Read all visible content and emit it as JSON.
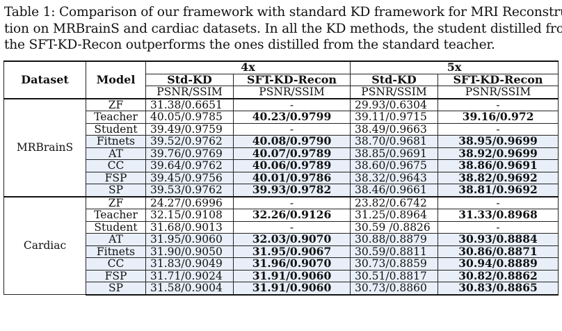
{
  "caption": {
    "line1": "Table 1: Comparison of our framework with standard KD framework for MRI Reconstruc-",
    "line2": "tion on MRBrainS and cardiac datasets. In all the KD methods, the student distilled from",
    "line3": "the SFT-KD-Recon outperforms the ones distilled from the standard teacher."
  },
  "header": {
    "dataset": "Dataset",
    "model": "Model",
    "group_4x": "4x",
    "group_5x": "5x",
    "std_kd": "Std-KD",
    "sft_kd": "SFT-KD-Recon",
    "metric": "PSNR/SSIM"
  },
  "mrbrains": {
    "name": "MRBrainS",
    "rows": [
      {
        "model": "ZF",
        "a": "31.38/0.6651",
        "b": "-",
        "c": "29.93/0.6304",
        "d": "-"
      },
      {
        "model": "Teacher",
        "a": "40.05/0.9785",
        "b": "40.23/0.9799",
        "c": "39.11/0.9715",
        "d": "39.16/0.972"
      },
      {
        "model": "Student",
        "a": "39.49/0.9759",
        "b": "-",
        "c": "38.49/0.9663",
        "d": "-"
      },
      {
        "model": "Fitnets",
        "a": "39.52/0.9762",
        "b": "40.08/0.9790",
        "c": "38.70/0.9681",
        "d": "38.95/0.9699"
      },
      {
        "model": "AT",
        "a": "39.76/0.9769",
        "b": "40.07/0.9789",
        "c": "38.85/0.9691",
        "d": "38.92/0.9699"
      },
      {
        "model": "CC",
        "a": "39.64/0.9762",
        "b": "40.06/0.9789",
        "c": "38.60/0.9675",
        "d": "38.86/0.9691"
      },
      {
        "model": "FSP",
        "a": "39.45/0.9756",
        "b": "40.01/0.9786",
        "c": "38.32/0.9643",
        "d": "38.82/0.9692"
      },
      {
        "model": "SP",
        "a": "39.53/0.9762",
        "b": "39.93/0.9782",
        "c": "38.46/0.9661",
        "d": "38.81/0.9692"
      }
    ]
  },
  "cardiac": {
    "name": "Cardiac",
    "rows": [
      {
        "model": "ZF",
        "a": "24.27/0.6996",
        "b": "-",
        "c": "23.82/0.6742",
        "d": "-"
      },
      {
        "model": "Teacher",
        "a": "32.15/0.9108",
        "b": "32.26/0.9126",
        "c": "31.25/0.8964",
        "d": "31.33/0.8968"
      },
      {
        "model": "Student",
        "a": "31.68/0.9013",
        "b": "-",
        "c": "30.59 /0.8826",
        "d": "-"
      },
      {
        "model": "AT",
        "a": "31.95/0.9060",
        "b": "32.03/0.9070",
        "c": "30.88/0.8879",
        "d": "30.93/0.8884"
      },
      {
        "model": "Fitnets",
        "a": "31.90/0.9050",
        "b": "31.95/0.9067",
        "c": "30.59/0.8811",
        "d": "30.86/0.8871"
      },
      {
        "model": "CC",
        "a": "31.83/0.9049",
        "b": "31.96/0.9070",
        "c": "30.73/0.8859",
        "d": "30.94/0.8889"
      },
      {
        "model": "FSP",
        "a": "31.71/0.9024",
        "b": "31.91/0.9060",
        "c": "30.51/0.8817",
        "d": "30.82/0.8862"
      },
      {
        "model": "SP",
        "a": "31.58/0.9004",
        "b": "31.91/0.9060",
        "c": "30.73/0.8860",
        "d": "30.83/0.8865"
      }
    ]
  },
  "colors": {
    "shaded_row": "#e8eff9",
    "border": "#222222"
  }
}
